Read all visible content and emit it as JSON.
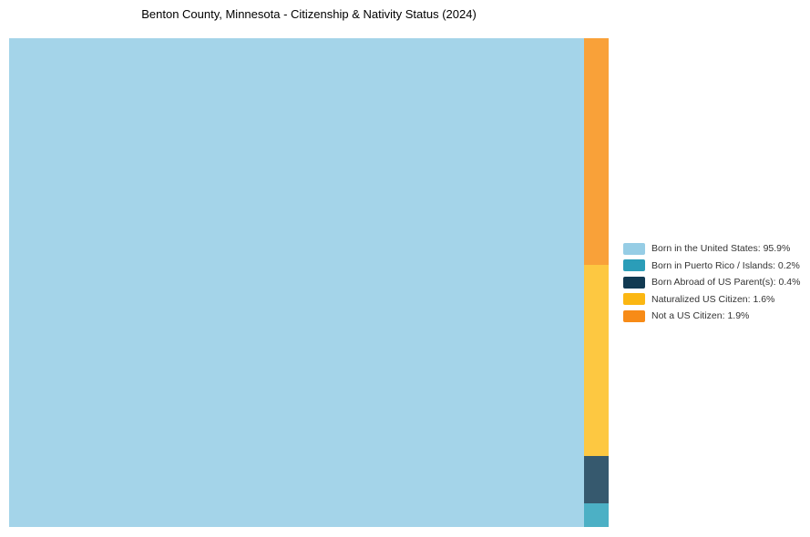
{
  "title": "Benton County, Minnesota - Citizenship & Nativity Status (2024)",
  "colors": {
    "background": "#ffffff",
    "title_text": "#000000",
    "legend_text": "#333333"
  },
  "chart_data": {
    "type": "treemap",
    "title": "Benton County, Minnesota - Citizenship & Nativity Status (2024)",
    "value_unit": "%",
    "legend_position": "right-middle",
    "layout": "first-point-full-height-left-slice; remaining points stacked bottom-up in a right column",
    "points": [
      {
        "id": "born-in-us",
        "label": "Born in the United States",
        "value": 95.9,
        "fill": "#A4D4E9",
        "legend_fill": "#96CDE5",
        "legend_label": "Born in the United States: 95.9%"
      },
      {
        "id": "born-in-puerto-rico-islands",
        "label": "Born in Puerto Rico / Islands",
        "value": 0.2,
        "fill": "#4CB0C5",
        "legend_fill": "#2B9DB8",
        "legend_label": "Born in Puerto Rico / Islands: 0.2%"
      },
      {
        "id": "born-abroad-us-parents",
        "label": "Born Abroad of US Parent(s)",
        "value": 0.4,
        "fill": "#36596E",
        "legend_fill": "#113A52",
        "legend_label": "Born Abroad of US Parent(s): 0.4%"
      },
      {
        "id": "naturalized-us-citizen",
        "label": "Naturalized US Citizen",
        "value": 1.6,
        "fill": "#FDC841",
        "legend_fill": "#FBB713",
        "legend_label": "Naturalized US Citizen: 1.6%"
      },
      {
        "id": "not-a-us-citizen",
        "label": "Not a US Citizen",
        "value": 1.9,
        "fill": "#F9A139",
        "legend_fill": "#F78B17",
        "legend_label": "Not a US Citizen: 1.9%"
      }
    ]
  }
}
